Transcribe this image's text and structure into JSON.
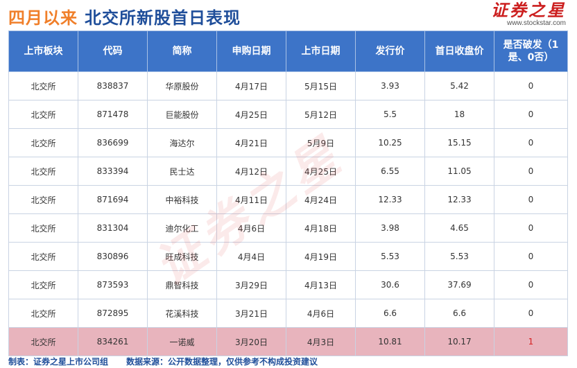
{
  "header": {
    "title_highlight": "四月以来",
    "title_main": "北交所新股首日表现",
    "logo_text": "证券之星",
    "logo_url": "www.stockstar.com"
  },
  "table": {
    "columns": [
      "上市板块",
      "代码",
      "简称",
      "申购日期",
      "上市日期",
      "发行价",
      "首日收盘价",
      "是否破发（1是、0否）"
    ],
    "rows": [
      [
        "北交所",
        "838837",
        "华原股份",
        "4月17日",
        "5月15日",
        "3.93",
        "5.42",
        "0"
      ],
      [
        "北交所",
        "871478",
        "巨能股份",
        "4月25日",
        "5月12日",
        "5.5",
        "18",
        "0"
      ],
      [
        "北交所",
        "836699",
        "海达尔",
        "4月21日",
        "5月9日",
        "10.25",
        "15.15",
        "0"
      ],
      [
        "北交所",
        "833394",
        "民士达",
        "4月12日",
        "4月25日",
        "6.55",
        "11.05",
        "0"
      ],
      [
        "北交所",
        "871694",
        "中裕科技",
        "4月11日",
        "4月24日",
        "12.33",
        "12.33",
        "0"
      ],
      [
        "北交所",
        "831304",
        "迪尔化工",
        "4月6日",
        "4月18日",
        "3.98",
        "4.65",
        "0"
      ],
      [
        "北交所",
        "830896",
        "旺成科技",
        "4月4日",
        "4月19日",
        "5.53",
        "5.53",
        "0"
      ],
      [
        "北交所",
        "873593",
        "鼎智科技",
        "3月29日",
        "4月13日",
        "30.6",
        "37.69",
        "0"
      ],
      [
        "北交所",
        "872895",
        "花溪科技",
        "3月21日",
        "4月6日",
        "6.6",
        "6.6",
        "0"
      ],
      [
        "北交所",
        "834261",
        "一诺威",
        "3月20日",
        "4月3日",
        "10.81",
        "10.17",
        "1"
      ]
    ]
  },
  "watermark": "证券之星",
  "footer": {
    "maker": "制表：证券之星上市公司组",
    "source": "数据来源：公开数据整理，仅供参考不构成投资建议"
  },
  "colors": {
    "accent_orange": "#f07f2a",
    "title_blue": "#1f4e9a",
    "header_blue": "#3d74c8",
    "highlight_row": "#e8b4bd",
    "logo_red": "#cc1f1f"
  }
}
